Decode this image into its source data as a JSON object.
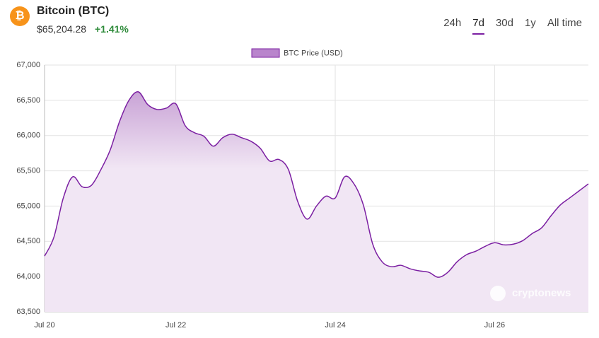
{
  "header": {
    "logo": "₿",
    "title": "Bitcoin (BTC)",
    "price": "$65,204.28",
    "change": "+1.41%",
    "tabs": [
      "24h",
      "7d",
      "30d",
      "1y",
      "All time"
    ],
    "active_tab": 1
  },
  "watermark": "cryptonews",
  "chart_data": {
    "type": "area",
    "categories": [
      "Jul 20",
      null,
      null,
      null,
      null,
      null,
      null,
      null,
      null,
      null,
      null,
      null,
      null,
      null,
      "Jul 22",
      null,
      null,
      null,
      null,
      null,
      null,
      null,
      null,
      null,
      null,
      null,
      null,
      null,
      null,
      null,
      null,
      "Jul 24",
      null,
      null,
      null,
      null,
      null,
      null,
      null,
      null,
      null,
      null,
      null,
      null,
      null,
      null,
      null,
      null,
      "Jul 26",
      null,
      null,
      null,
      null,
      null,
      null,
      null,
      null,
      null,
      null
    ],
    "series": [
      {
        "name": "BTC Price (USD)",
        "color": "#7b1fa2",
        "fill": "#f1e6f4",
        "values": [
          64290,
          64560,
          65115,
          65415,
          65275,
          65295,
          65515,
          65795,
          66200,
          66500,
          66620,
          66440,
          66370,
          66390,
          66450,
          66140,
          66040,
          65990,
          65850,
          65970,
          66020,
          65970,
          65920,
          65820,
          65640,
          65660,
          65520,
          65065,
          64815,
          65000,
          65140,
          65115,
          65415,
          65315,
          65015,
          64460,
          64210,
          64140,
          64160,
          64110,
          64080,
          64060,
          63990,
          64060,
          64210,
          64310,
          64360,
          64430,
          64480,
          64450,
          64460,
          64510,
          64610,
          64690,
          64860,
          65015,
          65115,
          65215,
          65315
        ]
      }
    ],
    "ylim": [
      63500,
      67000
    ],
    "yticks": [
      {
        "value": 63500,
        "label": "63,500"
      },
      {
        "value": 64000,
        "label": "64,000"
      },
      {
        "value": 64500,
        "label": "64,500"
      },
      {
        "value": 65000,
        "label": "65,000"
      },
      {
        "value": 65500,
        "label": "65,500"
      },
      {
        "value": 66000,
        "label": "66,000"
      },
      {
        "value": 66500,
        "label": "66,500"
      },
      {
        "value": 67000,
        "label": "67,000"
      }
    ],
    "grid": true,
    "legend": "top"
  }
}
